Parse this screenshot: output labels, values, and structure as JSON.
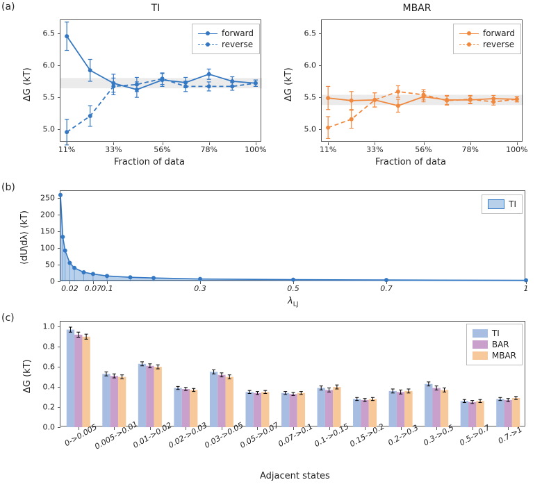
{
  "palette": {
    "ti_blue": "#3477c2",
    "mbar_orange": "#f0883e",
    "bar_purple": "#c9a0cb",
    "grid_gray": "#e6e6e6",
    "axis": "#555555",
    "text": "#222222",
    "shade_gray": "rgba(0,0,0,0.08)"
  },
  "panels": {
    "a_label": "(a)",
    "b_label": "(b)",
    "c_label": "(c)"
  },
  "panel_a": {
    "ti": {
      "title": "TI",
      "color": "#3477c2",
      "x_categories": [
        "11%",
        "33%",
        "56%",
        "78%",
        "100%"
      ],
      "x_positions": [
        11,
        22,
        33,
        44,
        56,
        67,
        78,
        89,
        100
      ],
      "forward": {
        "y": [
          6.45,
          5.92,
          5.72,
          5.62,
          5.77,
          5.73,
          5.86,
          5.75,
          5.72
        ],
        "err": [
          0.22,
          0.17,
          0.14,
          0.12,
          0.1,
          0.08,
          0.08,
          0.07,
          0.05
        ]
      },
      "reverse": {
        "y": [
          4.96,
          5.21,
          5.67,
          5.7,
          5.79,
          5.67,
          5.67,
          5.67,
          5.72
        ],
        "err": [
          0.2,
          0.16,
          0.13,
          0.11,
          0.09,
          0.08,
          0.07,
          0.06,
          0.05
        ]
      },
      "shade": {
        "lo": 5.64,
        "hi": 5.8
      },
      "ylim": [
        4.8,
        6.7
      ],
      "ytick": [
        5.0,
        5.5,
        6.0,
        6.5
      ],
      "ylabel": "ΔG (kT)",
      "xlabel": "Fraction of data",
      "legend": {
        "forward": "forward",
        "reverse": "reverse"
      }
    },
    "mbar": {
      "title": "MBAR",
      "color": "#f0883e",
      "x_categories": [
        "11%",
        "33%",
        "56%",
        "78%",
        "100%"
      ],
      "x_positions": [
        11,
        22,
        33,
        44,
        56,
        67,
        78,
        89,
        100
      ],
      "forward": {
        "y": [
          5.49,
          5.45,
          5.46,
          5.37,
          5.51,
          5.46,
          5.46,
          5.48,
          5.47
        ],
        "err": [
          0.18,
          0.14,
          0.11,
          0.1,
          0.08,
          0.07,
          0.06,
          0.05,
          0.04
        ]
      },
      "reverse": {
        "y": [
          5.03,
          5.16,
          5.46,
          5.59,
          5.54,
          5.45,
          5.47,
          5.43,
          5.47
        ],
        "err": [
          0.17,
          0.14,
          0.11,
          0.09,
          0.08,
          0.07,
          0.06,
          0.05,
          0.04
        ]
      },
      "shade": {
        "lo": 5.38,
        "hi": 5.54
      },
      "ylim": [
        4.8,
        6.7
      ],
      "ytick": [
        5.0,
        5.5,
        6.0,
        6.5
      ],
      "ylabel": "ΔG (kT)",
      "xlabel": "Fraction of data",
      "legend": {
        "forward": "forward",
        "reverse": "reverse"
      }
    }
  },
  "panel_b": {
    "color": "#3477c2",
    "fill": "rgba(52,119,194,0.35)",
    "ylabel": "⟨dU\\dλ⟩ (kT)",
    "xlabel": "λ_LJ",
    "x": [
      0,
      0.005,
      0.01,
      0.02,
      0.03,
      0.05,
      0.07,
      0.1,
      0.15,
      0.2,
      0.3,
      0.5,
      0.7,
      1.0
    ],
    "y": [
      258,
      133,
      92,
      55,
      40,
      27,
      22,
      16,
      12,
      10,
      7,
      5,
      4,
      3
    ],
    "xticks": [
      0.02,
      0.07,
      0.1,
      0.3,
      0.5,
      0.7,
      1.0
    ],
    "xtick_labels": [
      "0.02",
      "0.07",
      "0.1",
      "0.3",
      "0.5",
      "0.7",
      "1"
    ],
    "xlim": [
      0,
      1.0
    ],
    "ylim": [
      0,
      270
    ],
    "ytick": [
      0,
      50,
      100,
      150,
      200,
      250
    ],
    "legend": "TI"
  },
  "panel_c": {
    "ylabel": "ΔG (kT)",
    "xlabel": "Adjacent states",
    "ylim": [
      0,
      1.05
    ],
    "ytick": [
      0.0,
      0.2,
      0.4,
      0.6,
      0.8,
      1.0
    ],
    "categories": [
      "0->0.005",
      "0.005->0.01",
      "0.01->0.02",
      "0.02->0.03",
      "0.03->0.05",
      "0.05->0.07",
      "0.07->0.1",
      "0.1->0.15",
      "0.15->0.2",
      "0.2->0.3",
      "0.3->0.5",
      "0.5->0.7",
      "0.7->1"
    ],
    "series": [
      {
        "name": "TI",
        "color": "#a7bde1",
        "y": [
          0.97,
          0.53,
          0.63,
          0.39,
          0.55,
          0.35,
          0.34,
          0.39,
          0.28,
          0.36,
          0.43,
          0.26,
          0.28
        ],
        "err": [
          0.025,
          0.02,
          0.02,
          0.015,
          0.02,
          0.015,
          0.015,
          0.02,
          0.015,
          0.02,
          0.02,
          0.015,
          0.015
        ]
      },
      {
        "name": "BAR",
        "color": "#c9a0cb",
        "y": [
          0.92,
          0.51,
          0.61,
          0.38,
          0.52,
          0.34,
          0.33,
          0.37,
          0.27,
          0.35,
          0.39,
          0.25,
          0.27
        ],
        "err": [
          0.025,
          0.02,
          0.02,
          0.015,
          0.02,
          0.015,
          0.015,
          0.02,
          0.015,
          0.02,
          0.02,
          0.015,
          0.015
        ]
      },
      {
        "name": "MBAR",
        "color": "#f6c89a",
        "y": [
          0.9,
          0.5,
          0.6,
          0.37,
          0.5,
          0.35,
          0.34,
          0.4,
          0.28,
          0.36,
          0.37,
          0.26,
          0.29
        ],
        "err": [
          0.025,
          0.02,
          0.02,
          0.015,
          0.02,
          0.015,
          0.015,
          0.02,
          0.015,
          0.02,
          0.02,
          0.015,
          0.015
        ]
      }
    ]
  }
}
